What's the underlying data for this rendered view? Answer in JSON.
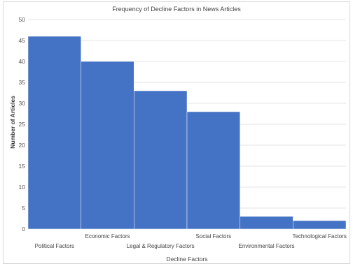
{
  "chart_data": {
    "type": "bar",
    "title": "Frequency of Decline Factors in News Articles",
    "xlabel": "Decline Factors",
    "ylabel": "Number of Articles",
    "categories": [
      "Political Factors",
      "Economic Factors",
      "Legal & Regulatory Factors",
      "Social Factors",
      "Environmental Factors",
      "Technological Factors"
    ],
    "values": [
      46,
      40,
      33,
      28,
      3,
      2
    ],
    "ylim": [
      0,
      50
    ],
    "yticks": [
      "0",
      "5",
      "10",
      "15",
      "20",
      "25",
      "30",
      "35",
      "40",
      "45",
      "50"
    ],
    "grid": true,
    "legend": "none",
    "bar_color": "#4472c4"
  }
}
